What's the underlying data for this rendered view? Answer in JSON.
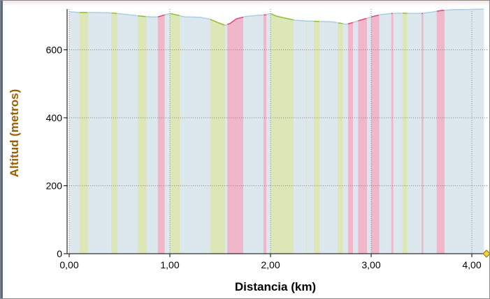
{
  "chart_data": {
    "type": "area",
    "title": "",
    "xlabel": "Distancia (km)",
    "ylabel": "Altitud (metros)",
    "xlim": [
      0,
      4.12
    ],
    "ylim": [
      0,
      720
    ],
    "x_ticks": [
      0,
      1,
      2,
      3,
      4
    ],
    "x_tick_labels": [
      "0,00",
      "1,00",
      "2,00",
      "3,00",
      "4,00"
    ],
    "y_ticks": [
      0,
      200,
      400,
      600
    ],
    "y_tick_labels": [
      "0",
      "200",
      "400",
      "600"
    ],
    "grid": true,
    "colors": {
      "flat": "#dde7ee",
      "descent": "#dce6b6",
      "ascent": "#efb7c9",
      "line_flat": "#a8cfe1",
      "line_descent": "#8fbf2e",
      "line_ascent": "#e5407d",
      "ylabel": "#9a6000",
      "xlabel": "#000000",
      "grid": "#808080"
    },
    "profile": [
      [
        0.0,
        712
      ],
      [
        0.1,
        710
      ],
      [
        0.25,
        710
      ],
      [
        0.4,
        709
      ],
      [
        0.48,
        707
      ],
      [
        0.6,
        703
      ],
      [
        0.72,
        699
      ],
      [
        0.82,
        697
      ],
      [
        0.88,
        697
      ],
      [
        0.95,
        703
      ],
      [
        1.0,
        707
      ],
      [
        1.05,
        704
      ],
      [
        1.15,
        697
      ],
      [
        1.3,
        696
      ],
      [
        1.4,
        690
      ],
      [
        1.48,
        680
      ],
      [
        1.55,
        672
      ],
      [
        1.6,
        678
      ],
      [
        1.66,
        691
      ],
      [
        1.75,
        698
      ],
      [
        1.85,
        701
      ],
      [
        1.95,
        703
      ],
      [
        2.0,
        707
      ],
      [
        2.05,
        700
      ],
      [
        2.15,
        693
      ],
      [
        2.25,
        687
      ],
      [
        2.35,
        685
      ],
      [
        2.45,
        684
      ],
      [
        2.55,
        683
      ],
      [
        2.62,
        682
      ],
      [
        2.7,
        678
      ],
      [
        2.75,
        675
      ],
      [
        2.8,
        679
      ],
      [
        2.9,
        688
      ],
      [
        3.0,
        697
      ],
      [
        3.1,
        704
      ],
      [
        3.2,
        707
      ],
      [
        3.3,
        708
      ],
      [
        3.4,
        707
      ],
      [
        3.5,
        707
      ],
      [
        3.6,
        711
      ],
      [
        3.7,
        716
      ],
      [
        3.8,
        718
      ],
      [
        4.0,
        719
      ],
      [
        4.12,
        720
      ]
    ],
    "segments": [
      {
        "from": 0.0,
        "to": 0.1,
        "kind": "flat"
      },
      {
        "from": 0.1,
        "to": 0.19,
        "kind": "descent"
      },
      {
        "from": 0.19,
        "to": 0.42,
        "kind": "flat"
      },
      {
        "from": 0.42,
        "to": 0.48,
        "kind": "descent"
      },
      {
        "from": 0.48,
        "to": 0.68,
        "kind": "flat"
      },
      {
        "from": 0.68,
        "to": 0.77,
        "kind": "descent"
      },
      {
        "from": 0.77,
        "to": 0.88,
        "kind": "flat"
      },
      {
        "from": 0.88,
        "to": 0.95,
        "kind": "ascent"
      },
      {
        "from": 0.95,
        "to": 1.0,
        "kind": "flat"
      },
      {
        "from": 1.0,
        "to": 1.1,
        "kind": "descent"
      },
      {
        "from": 1.1,
        "to": 1.4,
        "kind": "flat"
      },
      {
        "from": 1.4,
        "to": 1.55,
        "kind": "descent"
      },
      {
        "from": 1.55,
        "to": 1.57,
        "kind": "flat"
      },
      {
        "from": 1.57,
        "to": 1.73,
        "kind": "ascent"
      },
      {
        "from": 1.73,
        "to": 1.93,
        "kind": "flat"
      },
      {
        "from": 1.93,
        "to": 1.96,
        "kind": "ascent"
      },
      {
        "from": 1.96,
        "to": 2.0,
        "kind": "flat"
      },
      {
        "from": 2.0,
        "to": 2.23,
        "kind": "descent"
      },
      {
        "from": 2.23,
        "to": 2.35,
        "kind": "flat"
      },
      {
        "from": 2.35,
        "to": 2.36,
        "kind": "descent"
      },
      {
        "from": 2.36,
        "to": 2.43,
        "kind": "flat"
      },
      {
        "from": 2.43,
        "to": 2.49,
        "kind": "descent"
      },
      {
        "from": 2.49,
        "to": 2.67,
        "kind": "flat"
      },
      {
        "from": 2.67,
        "to": 2.72,
        "kind": "descent"
      },
      {
        "from": 2.72,
        "to": 2.77,
        "kind": "flat"
      },
      {
        "from": 2.77,
        "to": 2.82,
        "kind": "ascent"
      },
      {
        "from": 2.82,
        "to": 2.87,
        "kind": "flat"
      },
      {
        "from": 2.87,
        "to": 2.96,
        "kind": "ascent"
      },
      {
        "from": 2.96,
        "to": 3.0,
        "kind": "flat"
      },
      {
        "from": 3.0,
        "to": 3.08,
        "kind": "ascent"
      },
      {
        "from": 3.08,
        "to": 3.2,
        "kind": "flat"
      },
      {
        "from": 3.2,
        "to": 3.22,
        "kind": "ascent"
      },
      {
        "from": 3.22,
        "to": 3.31,
        "kind": "flat"
      },
      {
        "from": 3.31,
        "to": 3.36,
        "kind": "descent"
      },
      {
        "from": 3.36,
        "to": 3.5,
        "kind": "flat"
      },
      {
        "from": 3.5,
        "to": 3.52,
        "kind": "ascent"
      },
      {
        "from": 3.52,
        "to": 3.65,
        "kind": "flat"
      },
      {
        "from": 3.65,
        "to": 3.73,
        "kind": "ascent"
      },
      {
        "from": 3.73,
        "to": 4.12,
        "kind": "flat"
      }
    ]
  }
}
